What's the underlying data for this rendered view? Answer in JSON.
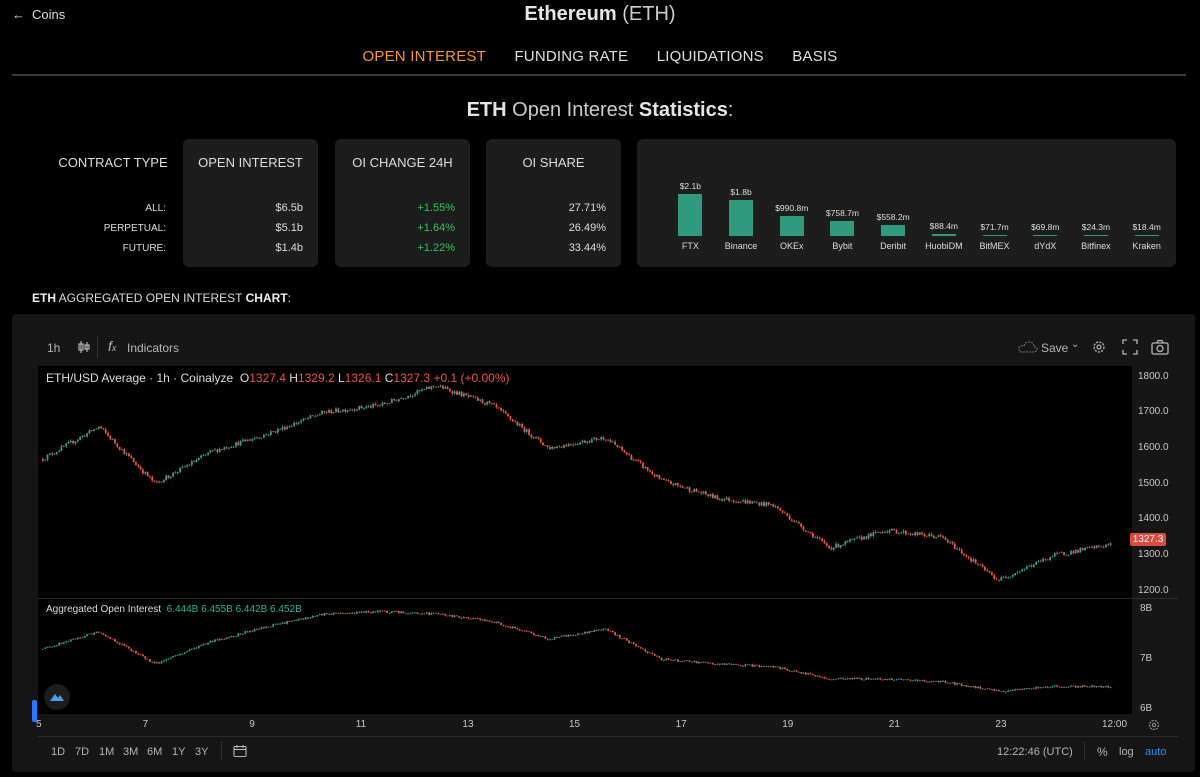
{
  "nav": {
    "back_label": "Coins"
  },
  "page": {
    "coin_name": "Ethereum",
    "coin_symbol": "(ETH)"
  },
  "tabs": [
    {
      "label": "OPEN INTEREST",
      "active": true
    },
    {
      "label": "FUNDING RATE",
      "active": false
    },
    {
      "label": "LIQUIDATIONS",
      "active": false
    },
    {
      "label": "BASIS",
      "active": false
    }
  ],
  "stats": {
    "title_prefix": "ETH",
    "title_mid": "Open Interest",
    "title_strong": "Statistics",
    "title_suffix": ":",
    "headers": {
      "contract_type": "CONTRACT TYPE",
      "open_interest": "OPEN INTEREST",
      "oi_change": "OI CHANGE 24H",
      "oi_share": "OI SHARE"
    },
    "rows": [
      {
        "label": "ALL:",
        "oi": "$6.5b",
        "change": "+1.55%",
        "share": "27.71%"
      },
      {
        "label": "PERPETUAL:",
        "oi": "$5.1b",
        "change": "+1.64%",
        "share": "26.49%"
      },
      {
        "label": "FUTURE:",
        "oi": "$1.4b",
        "change": "+1.22%",
        "share": "33.44%"
      }
    ]
  },
  "exchanges": [
    {
      "name": "FTX",
      "value_label": "$2.1b",
      "value_b": 2.1
    },
    {
      "name": "Binance",
      "value_label": "$1.8b",
      "value_b": 1.8
    },
    {
      "name": "OKEx",
      "value_label": "$990.8m",
      "value_b": 0.9908
    },
    {
      "name": "Bybit",
      "value_label": "$758.7m",
      "value_b": 0.7587
    },
    {
      "name": "Deribit",
      "value_label": "$558.2m",
      "value_b": 0.5582
    },
    {
      "name": "HuobiDM",
      "value_label": "$88.4m",
      "value_b": 0.0884
    },
    {
      "name": "BitMEX",
      "value_label": "$71.7m",
      "value_b": 0.0717
    },
    {
      "name": "dYdX",
      "value_label": "$69.8m",
      "value_b": 0.0698
    },
    {
      "name": "Bitfinex",
      "value_label": "$24.3m",
      "value_b": 0.0243
    },
    {
      "name": "Kraken",
      "value_label": "$18.4m",
      "value_b": 0.0184
    }
  ],
  "chart_section": {
    "prefix": "ETH",
    "mid": "AGGREGATED OPEN INTEREST",
    "strong": "CHART",
    "suffix": ":"
  },
  "toolbar": {
    "interval": "1h",
    "indicators_label": "Indicators",
    "save_label": "Save"
  },
  "price_legend": {
    "symbol": "ETH/USD Average · 1h · Coinalyze",
    "o_label": "O",
    "o": "1327.4",
    "h_label": "H",
    "h": "1329.2",
    "l_label": "L",
    "l": "1326.1",
    "c_label": "C",
    "c": "1327.3",
    "change": "+0.1 (+0.00%)"
  },
  "oi_legend": {
    "name": "Aggregated Open Interest",
    "values": "6.444B 6.455B 6.442B 6.452B"
  },
  "price_axis": [
    "1800.0",
    "1700.0",
    "1600.0",
    "1500.0",
    "1400.0",
    "1300.0",
    "1200.0"
  ],
  "last_price": "1327.3",
  "oi_axis": [
    "8B",
    "7B",
    "6B"
  ],
  "x_axis": [
    "5",
    "7",
    "9",
    "11",
    "13",
    "15",
    "17",
    "19",
    "21",
    "23",
    "12:00"
  ],
  "ranges": [
    "1D",
    "7D",
    "1M",
    "3M",
    "6M",
    "1Y",
    "3Y"
  ],
  "clock": "12:22:46 (UTC)",
  "scale_options": [
    {
      "label": "%",
      "active": false
    },
    {
      "label": "log",
      "active": false
    },
    {
      "label": "auto",
      "active": true
    }
  ],
  "colors": {
    "accent": "#f5962f",
    "up": "#26a69a",
    "down": "#ef5350",
    "positive": "#35c25a",
    "bar": "#2f9a7d"
  },
  "chart_data": [
    {
      "type": "bar",
      "title": "",
      "categories": [
        "FTX",
        "Binance",
        "OKEx",
        "Bybit",
        "Deribit",
        "HuobiDM",
        "BitMEX",
        "dYdX",
        "Bitfinex",
        "Kraken"
      ],
      "values": [
        2.1,
        1.8,
        0.9908,
        0.7587,
        0.5582,
        0.0884,
        0.0717,
        0.0698,
        0.0243,
        0.0184
      ],
      "data_labels": [
        "$2.1b",
        "$1.8b",
        "$990.8m",
        "$758.7m",
        "$558.2m",
        "$88.4m",
        "$71.7m",
        "$69.8m",
        "$24.3m",
        "$18.4m"
      ]
    },
    {
      "type": "line",
      "title": "ETH/USD Average · 1h · Coinalyze",
      "x": [
        "5",
        "6",
        "7",
        "8",
        "9",
        "10",
        "11",
        "12",
        "13",
        "14",
        "15",
        "16",
        "17",
        "18",
        "19",
        "20",
        "21",
        "22",
        "23",
        "24"
      ],
      "series": [
        {
          "values": [
            1570,
            1660,
            1500,
            1590,
            1640,
            1700,
            1720,
            1775,
            1720,
            1600,
            1630,
            1510,
            1460,
            1440,
            1320,
            1370,
            1350,
            1230,
            1300,
            1330
          ]
        }
      ],
      "yticks": [
        "1800.0",
        "1700.0",
        "1600.0",
        "1500.0",
        "1400.0",
        "1300.0",
        "1200.0"
      ],
      "ylim": [
        1180,
        1830
      ]
    },
    {
      "type": "line",
      "title": "Aggregated Open Interest",
      "x": [
        "5",
        "6",
        "7",
        "8",
        "9",
        "10",
        "11",
        "12",
        "13",
        "14",
        "15",
        "16",
        "17",
        "18",
        "19",
        "20",
        "21",
        "22",
        "23",
        "24"
      ],
      "series": [
        {
          "values": [
            7.2,
            7.55,
            6.9,
            7.35,
            7.65,
            7.9,
            7.95,
            7.9,
            7.75,
            7.4,
            7.6,
            7.0,
            6.9,
            6.85,
            6.6,
            6.6,
            6.55,
            6.35,
            6.45,
            6.45
          ]
        }
      ],
      "yticks": [
        "8B",
        "7B",
        "6B"
      ],
      "ylim": [
        5.9,
        8.2
      ]
    }
  ]
}
